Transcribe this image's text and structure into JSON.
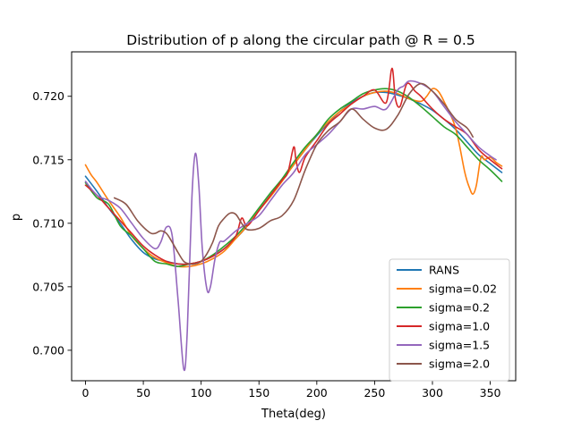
{
  "chart_data": {
    "type": "line",
    "title": "Distribution of p along the circular path @ R = 0.5",
    "xlabel": "Theta(deg)",
    "ylabel": "p",
    "xlim": [
      -12,
      372
    ],
    "ylim": [
      0.6976,
      0.7235
    ],
    "xticks": [
      0,
      50,
      100,
      150,
      200,
      250,
      300,
      350
    ],
    "yticks": [
      0.7,
      0.705,
      0.71,
      0.715,
      0.72
    ],
    "xtick_labels": [
      "0",
      "50",
      "100",
      "150",
      "200",
      "250",
      "300",
      "350"
    ],
    "ytick_labels": [
      "0.700",
      "0.705",
      "0.710",
      "0.715",
      "0.720"
    ],
    "legend_position": "lower-right",
    "grid": false,
    "series": [
      {
        "name": "RANS",
        "color": "#1f77b4",
        "x": [
          0,
          10,
          20,
          30,
          40,
          50,
          60,
          70,
          80,
          90,
          100,
          110,
          120,
          130,
          140,
          150,
          160,
          170,
          180,
          190,
          200,
          210,
          220,
          230,
          240,
          250,
          260,
          270,
          280,
          290,
          300,
          310,
          320,
          330,
          340,
          350,
          360
        ],
        "y": [
          0.7137,
          0.7125,
          0.7112,
          0.71,
          0.7087,
          0.7077,
          0.7072,
          0.707,
          0.7068,
          0.7068,
          0.707,
          0.7074,
          0.708,
          0.7088,
          0.7098,
          0.711,
          0.7122,
          0.7134,
          0.7146,
          0.7158,
          0.7169,
          0.7179,
          0.7188,
          0.7195,
          0.72,
          0.7203,
          0.7203,
          0.7201,
          0.7198,
          0.7194,
          0.7189,
          0.7182,
          0.7174,
          0.7164,
          0.7154,
          0.7147,
          0.714
        ]
      },
      {
        "name": "sigma=0.02",
        "color": "#ff7f0e",
        "x": [
          0,
          5,
          10,
          20,
          30,
          40,
          50,
          60,
          70,
          80,
          90,
          100,
          110,
          120,
          130,
          140,
          150,
          160,
          170,
          180,
          190,
          200,
          210,
          220,
          230,
          240,
          250,
          260,
          270,
          280,
          290,
          295,
          300,
          305,
          310,
          320,
          328,
          332,
          335,
          338,
          342,
          345,
          350,
          355,
          360
        ],
        "y": [
          0.7146,
          0.7138,
          0.7132,
          0.7118,
          0.7105,
          0.709,
          0.708,
          0.7073,
          0.7069,
          0.7066,
          0.7066,
          0.7068,
          0.7072,
          0.7078,
          0.7088,
          0.7098,
          0.711,
          0.7121,
          0.7133,
          0.7146,
          0.7158,
          0.717,
          0.718,
          0.7188,
          0.7194,
          0.72,
          0.7203,
          0.7204,
          0.7202,
          0.7198,
          0.7196,
          0.72,
          0.7206,
          0.7204,
          0.7196,
          0.7175,
          0.714,
          0.7128,
          0.7123,
          0.713,
          0.7152,
          0.715,
          0.7152,
          0.7148,
          0.7145
        ]
      },
      {
        "name": "sigma=0.2",
        "color": "#2ca02c",
        "x": [
          0,
          10,
          20,
          30,
          40,
          50,
          60,
          70,
          80,
          90,
          100,
          110,
          120,
          130,
          140,
          150,
          160,
          170,
          180,
          190,
          200,
          210,
          220,
          230,
          240,
          250,
          260,
          270,
          280,
          290,
          300,
          310,
          320,
          330,
          340,
          350,
          360
        ],
        "y": [
          0.7132,
          0.712,
          0.7115,
          0.7098,
          0.709,
          0.708,
          0.707,
          0.7068,
          0.7066,
          0.7068,
          0.707,
          0.7075,
          0.7082,
          0.709,
          0.71,
          0.7112,
          0.7124,
          0.7135,
          0.7148,
          0.716,
          0.717,
          0.7182,
          0.719,
          0.7196,
          0.7202,
          0.7205,
          0.7206,
          0.7204,
          0.7199,
          0.7192,
          0.7184,
          0.7176,
          0.717,
          0.716,
          0.715,
          0.7142,
          0.7133
        ]
      },
      {
        "name": "sigma=1.0",
        "color": "#d62728",
        "x": [
          0,
          10,
          20,
          30,
          40,
          50,
          60,
          70,
          80,
          90,
          100,
          110,
          120,
          130,
          135,
          140,
          150,
          160,
          170,
          175,
          180,
          182,
          185,
          190,
          200,
          210,
          220,
          230,
          240,
          250,
          260,
          265,
          268,
          272,
          278,
          285,
          290,
          300,
          310,
          320,
          330,
          340,
          350,
          360
        ],
        "y": [
          0.713,
          0.7122,
          0.7112,
          0.7102,
          0.7092,
          0.7082,
          0.7075,
          0.707,
          0.7068,
          0.7068,
          0.707,
          0.7074,
          0.708,
          0.709,
          0.7104,
          0.7098,
          0.711,
          0.7122,
          0.7134,
          0.714,
          0.716,
          0.715,
          0.714,
          0.7152,
          0.7165,
          0.7178,
          0.7186,
          0.7194,
          0.72,
          0.7205,
          0.7195,
          0.7222,
          0.7198,
          0.7192,
          0.721,
          0.7204,
          0.72,
          0.719,
          0.7182,
          0.7176,
          0.717,
          0.7158,
          0.715,
          0.7143
        ]
      },
      {
        "name": "sigma=1.5",
        "color": "#9467bd",
        "x": [
          0,
          10,
          20,
          30,
          40,
          50,
          60,
          65,
          70,
          75,
          80,
          85,
          88,
          92,
          95,
          98,
          101,
          105,
          108,
          112,
          116,
          120,
          130,
          140,
          150,
          160,
          170,
          180,
          190,
          200,
          210,
          220,
          230,
          240,
          250,
          260,
          270,
          275,
          280,
          290,
          300,
          310,
          320,
          330,
          340,
          350,
          355
        ],
        "y": [
          0.7133,
          0.7122,
          0.7118,
          0.7112,
          0.71,
          0.7088,
          0.708,
          0.7085,
          0.7097,
          0.709,
          0.704,
          0.6985,
          0.7015,
          0.712,
          0.7155,
          0.713,
          0.708,
          0.7048,
          0.705,
          0.7072,
          0.7085,
          0.7086,
          0.7094,
          0.71,
          0.7106,
          0.7118,
          0.713,
          0.714,
          0.7154,
          0.7162,
          0.717,
          0.718,
          0.719,
          0.719,
          0.7192,
          0.719,
          0.7205,
          0.7208,
          0.7212,
          0.721,
          0.7204,
          0.7192,
          0.718,
          0.717,
          0.716,
          0.7153,
          0.715
        ]
      },
      {
        "name": "sigma=2.0",
        "color": "#8c564b",
        "x": [
          25,
          35,
          45,
          55,
          60,
          65,
          70,
          75,
          80,
          85,
          90,
          95,
          100,
          105,
          110,
          115,
          120,
          125,
          130,
          135,
          140,
          150,
          160,
          170,
          180,
          190,
          200,
          210,
          220,
          230,
          240,
          250,
          260,
          270,
          280,
          290,
          300,
          310,
          320,
          330,
          335
        ],
        "y": [
          0.712,
          0.7115,
          0.7102,
          0.7093,
          0.7092,
          0.7094,
          0.7092,
          0.7085,
          0.7077,
          0.707,
          0.7068,
          0.7068,
          0.707,
          0.7076,
          0.7085,
          0.7098,
          0.7104,
          0.7108,
          0.7107,
          0.71,
          0.7095,
          0.7096,
          0.7102,
          0.7106,
          0.7118,
          0.7142,
          0.7162,
          0.7173,
          0.718,
          0.719,
          0.7182,
          0.7175,
          0.7174,
          0.7185,
          0.7202,
          0.721,
          0.7204,
          0.7194,
          0.7182,
          0.7175,
          0.7168
        ]
      }
    ]
  }
}
